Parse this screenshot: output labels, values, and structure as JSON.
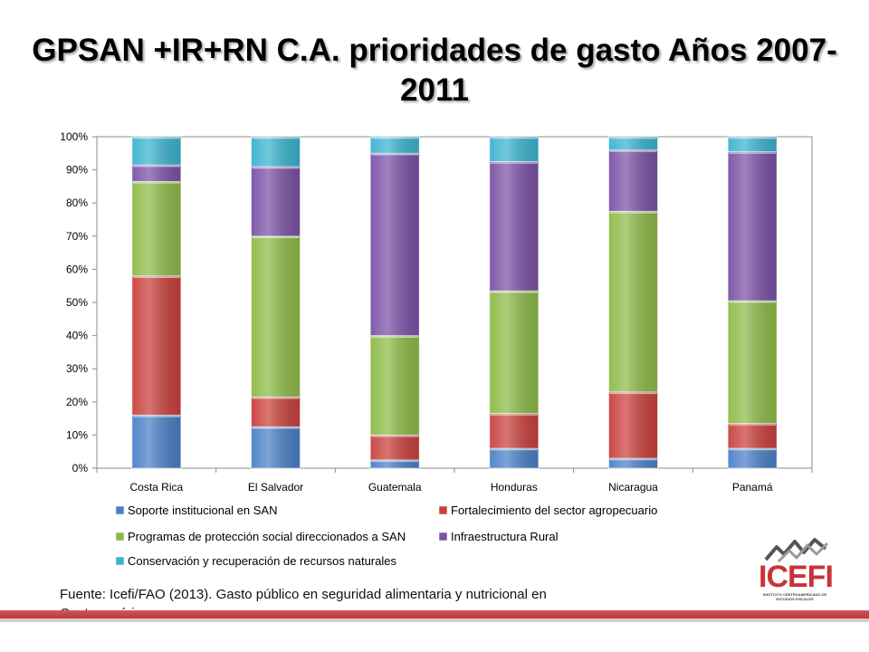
{
  "slide": {
    "title": "GPSAN +IR+RN C.A. prioridades de gasto Años 2007-2011",
    "source": "Fuente: Icefi/FAO (2013). Gasto público en seguridad alimentaria y nutricional en Centroamérica.",
    "logo_text": "ICEFI",
    "logo_subtext": "INSTITUTO CENTROAMERICANO DE ESTUDIOS FISCALES"
  },
  "chart_data": {
    "type": "bar",
    "stacked": "percent",
    "categories": [
      "Costa Rica",
      "El Salvador",
      "Guatemala",
      "Honduras",
      "Nicaragua",
      "Panamá"
    ],
    "series": [
      {
        "name": "Soporte institucional en SAN",
        "color": "#4a7fc7",
        "values": [
          16,
          12.5,
          2.5,
          6,
          3,
          6
        ]
      },
      {
        "name": "Fortalecimiento del sector agropecuario",
        "color": "#c9403c",
        "values": [
          42,
          9,
          7.5,
          10.5,
          20,
          7.5
        ]
      },
      {
        "name": "Programas de protección social direccionados a SAN",
        "color": "#8dba47",
        "values": [
          28.5,
          48.5,
          30,
          37,
          54.5,
          37
        ]
      },
      {
        "name": "Infraestructura Rural",
        "color": "#7a52a6",
        "values": [
          5,
          21,
          55,
          39,
          18.5,
          45
        ]
      },
      {
        "name": "Conservación y recuperación de recursos naturales",
        "color": "#3ab3cf",
        "values": [
          8.5,
          9,
          5,
          7.5,
          4,
          4.5
        ]
      }
    ],
    "yticks": [
      "0%",
      "10%",
      "20%",
      "30%",
      "40%",
      "50%",
      "60%",
      "70%",
      "80%",
      "90%",
      "100%"
    ],
    "ylim": [
      0,
      100
    ],
    "grid": false,
    "legend": "bottom"
  }
}
